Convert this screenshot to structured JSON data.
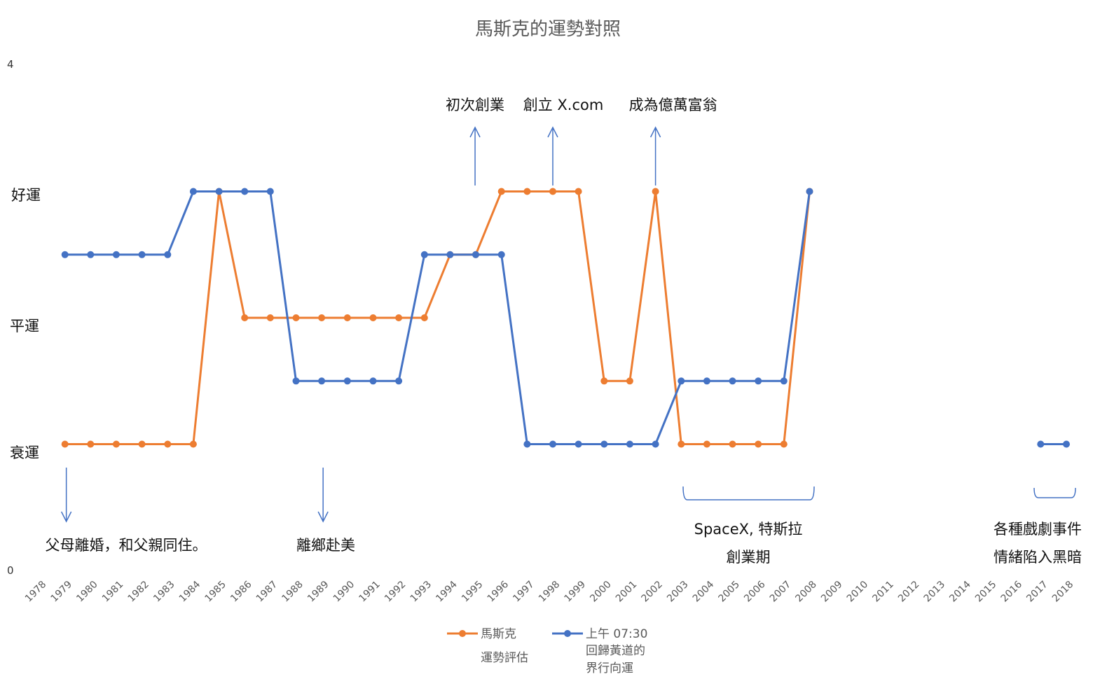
{
  "chart_data": {
    "type": "line",
    "title": "馬斯克的運勢對照",
    "ylim": [
      0,
      4
    ],
    "y_axis_ticks": [
      "0",
      "4"
    ],
    "y_levels": [
      {
        "value": 1,
        "label": "衰運"
      },
      {
        "value": 2,
        "label": "平運"
      },
      {
        "value": 3,
        "label": "好運"
      }
    ],
    "categories": [
      "1978",
      "1979",
      "1980",
      "1981",
      "1982",
      "1983",
      "1984",
      "1985",
      "1986",
      "1987",
      "1988",
      "1989",
      "1990",
      "1991",
      "1992",
      "1993",
      "1994",
      "1995",
      "1996",
      "1997",
      "1998",
      "1999",
      "2000",
      "2001",
      "2002",
      "2003",
      "2004",
      "2005",
      "2006",
      "2007",
      "2008",
      "2009",
      "2010",
      "2011",
      "2012",
      "2013",
      "2014",
      "2015",
      "2016",
      "2017",
      "2018"
    ],
    "series": [
      {
        "name": "馬斯克運勢評估",
        "legend_lines": [
          "馬斯克",
          "運勢評估"
        ],
        "color": "#ED7D31",
        "values": [
          null,
          1,
          1,
          1,
          1,
          1,
          1,
          3,
          2,
          2,
          2,
          2,
          2,
          2,
          2,
          2,
          2.5,
          2.5,
          3,
          3,
          3,
          3,
          1.5,
          1.5,
          3,
          1,
          1,
          1,
          1,
          1,
          3,
          null,
          null,
          null,
          null,
          null,
          null,
          null,
          null,
          null,
          null
        ]
      },
      {
        "name": "上午 07:30 回歸黃道的界行向運",
        "legend_lines": [
          "上午 07:30",
          "回歸黃道的",
          "界行向運"
        ],
        "color": "#4472C4",
        "values": [
          null,
          2.5,
          2.5,
          2.5,
          2.5,
          2.5,
          3,
          3,
          3,
          3,
          1.5,
          1.5,
          1.5,
          1.5,
          1.5,
          2.5,
          2.5,
          2.5,
          2.5,
          1,
          1,
          1,
          1,
          1,
          1,
          1.5,
          1.5,
          1.5,
          1.5,
          1.5,
          3,
          null,
          null,
          null,
          null,
          null,
          null,
          null,
          null,
          1,
          1
        ]
      }
    ],
    "annotations": {
      "up": [
        {
          "text": "初次創業",
          "year": "1995"
        },
        {
          "text": "創立 X.com",
          "year": "1998"
        },
        {
          "text": "成為億萬富翁",
          "year": "2002"
        }
      ],
      "down": [
        {
          "text": "父母離婚，和父親同住。",
          "year": "1979"
        },
        {
          "text": "離鄉赴美",
          "year": "1989"
        }
      ],
      "brackets": [
        {
          "lines": [
            "SpaceX, 特斯拉",
            "創業期"
          ],
          "from": "2003",
          "to": "2008"
        },
        {
          "lines": [
            "各種戲劇事件",
            "情緒陷入黑暗"
          ],
          "from": "2017",
          "to": "2018"
        }
      ]
    },
    "grid": false,
    "legend_position": "bottom"
  }
}
